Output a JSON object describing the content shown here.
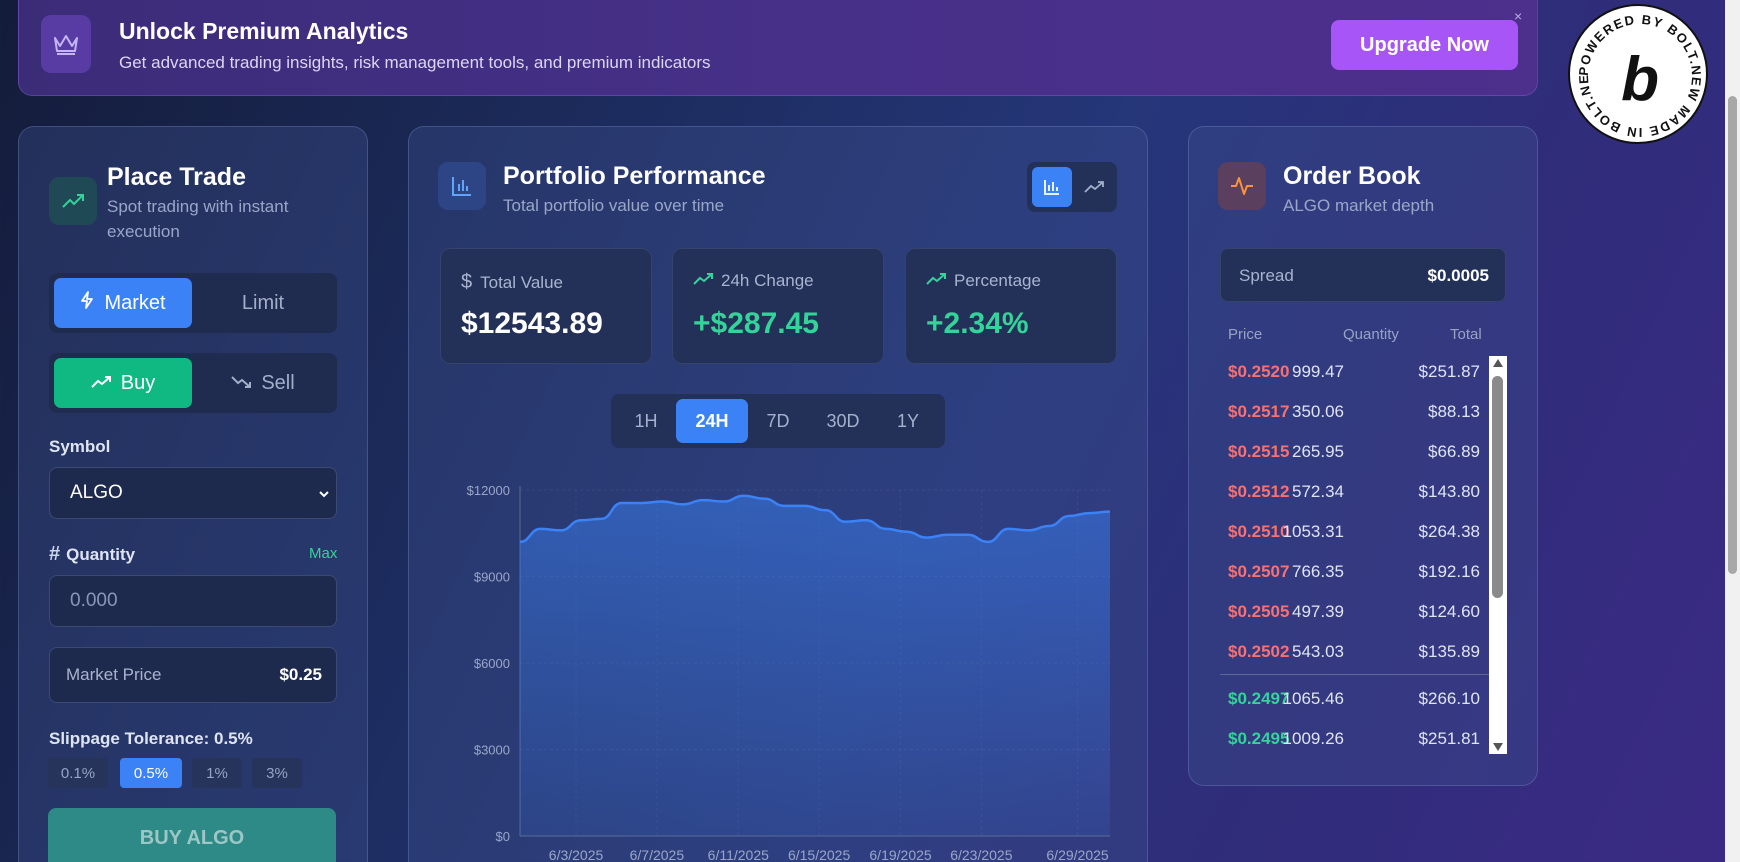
{
  "banner": {
    "title": "Unlock Premium Analytics",
    "subtitle": "Get advanced trading insights, risk management tools, and premium indicators",
    "upgrade_label": "Upgrade Now",
    "close": "×",
    "icon": "crown-icon"
  },
  "badge": {
    "text": "POWERED BY BOLT.NEW MADE IN BOLT.NEW",
    "logo": "b"
  },
  "trade": {
    "title": "Place Trade",
    "subtitle_line1": "Spot trading with instant",
    "subtitle_line2": "execution",
    "order_types": [
      "Market",
      "Limit"
    ],
    "selected_order_type": "Market",
    "sides": [
      "Buy",
      "Sell"
    ],
    "selected_side": "Buy",
    "symbol_label": "Symbol",
    "symbol_value": "ALGO",
    "quantity_label": "Quantity",
    "max_label": "Max",
    "quantity_placeholder": "0.000",
    "market_price_label": "Market Price",
    "market_price_value": "$0.25",
    "slippage_label": "Slippage Tolerance: 0.5%",
    "slippage_options": [
      "0.1%",
      "0.5%",
      "1%",
      "3%"
    ],
    "selected_slippage": "0.5%",
    "submit_label": "BUY ALGO"
  },
  "portfolio": {
    "title": "Portfolio Performance",
    "subtitle": "Total portfolio value over time",
    "stats": [
      {
        "label": "Total Value",
        "value": "$12543.89",
        "icon": "dollar-icon"
      },
      {
        "label": "24h Change",
        "value": "+$287.45",
        "icon": "trending-up-icon"
      },
      {
        "label": "Percentage",
        "value": "+2.34%",
        "icon": "trending-up-icon"
      }
    ],
    "ranges": [
      "1H",
      "24H",
      "7D",
      "30D",
      "1Y"
    ],
    "selected_range": "24H",
    "chart_view": "area"
  },
  "chart_data": {
    "type": "area",
    "x_ticks": [
      "6/3/2025",
      "6/7/2025",
      "6/11/2025",
      "6/15/2025",
      "6/19/2025",
      "6/23/2025",
      "6/29/2025"
    ],
    "y_ticks": [
      "$0",
      "$3000",
      "$6000",
      "$9000",
      "$12000"
    ],
    "ylim": [
      0,
      12000
    ],
    "x_start": "6/1/2025",
    "x_end": "6/30/2025",
    "series": [
      {
        "values": [
          10200,
          10650,
          10600,
          10950,
          11000,
          11550,
          11550,
          11600,
          11500,
          11650,
          11600,
          11800,
          11700,
          11450,
          11450,
          11300,
          10900,
          10950,
          10650,
          10550,
          10350,
          10450,
          10450,
          10200,
          10650,
          10600,
          10750,
          11100,
          11200,
          11250
        ]
      }
    ],
    "color": "#3b82f6",
    "grid": true
  },
  "orderbook": {
    "title": "Order Book",
    "subtitle": "ALGO market depth",
    "spread_label": "Spread",
    "spread_value": "$0.0005",
    "columns": [
      "Price",
      "Quantity",
      "Total"
    ],
    "asks": [
      [
        "$0.2520",
        "999.47",
        "$251.87"
      ],
      [
        "$0.2517",
        "350.06",
        "$88.13"
      ],
      [
        "$0.2515",
        "265.95",
        "$66.89"
      ],
      [
        "$0.2512",
        "572.34",
        "$143.80"
      ],
      [
        "$0.2510",
        "1053.31",
        "$264.38"
      ],
      [
        "$0.2507",
        "766.35",
        "$192.16"
      ],
      [
        "$0.2505",
        "497.39",
        "$124.60"
      ],
      [
        "$0.2502",
        "543.03",
        "$135.89"
      ]
    ],
    "bids": [
      [
        "$0.2497",
        "1065.46",
        "$266.10"
      ],
      [
        "$0.2495",
        "1009.26",
        "$251.81"
      ]
    ]
  },
  "colors": {
    "accent": "#3b82f6",
    "buy": "#10b981",
    "ask": "#f87171",
    "bid": "#34d399",
    "premium": "#a855f7"
  }
}
